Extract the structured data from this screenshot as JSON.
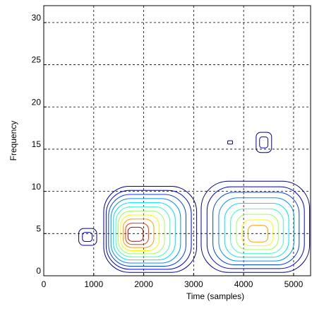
{
  "chart_data": {
    "type": "contour",
    "xlabel": "Time (samples)",
    "ylabel": "Frequency",
    "xlim": [
      0,
      5340
    ],
    "ylim": [
      0,
      32
    ],
    "xticks": [
      0,
      1000,
      2000,
      3000,
      4000,
      5000
    ],
    "yticks": [
      0,
      5,
      10,
      15,
      20,
      25,
      30
    ],
    "grid": true,
    "colors": [
      "#00008f",
      "#0000df",
      "#0040ff",
      "#0090ff",
      "#00e0ff",
      "#40ffbf",
      "#a0ff60",
      "#f0ff00",
      "#ffa000",
      "#ff3000",
      "#c00000"
    ],
    "regions": [
      {
        "x": [
          700,
          1060
        ],
        "y": [
          3.6,
          5.6
        ],
        "peak": [
          860,
          4.6
        ],
        "levels": 2
      },
      {
        "x": [
          1200,
          3060
        ],
        "y": [
          0.4,
          10.6
        ],
        "peak": [
          1780,
          4.8
        ],
        "levels": 11
      },
      {
        "x": [
          3150,
          5320
        ],
        "y": [
          0.4,
          11.2
        ],
        "peak": [
          4300,
          4.8
        ],
        "levels": 9
      },
      {
        "x": [
          4250,
          4560
        ],
        "y": [
          14.6,
          17.0
        ],
        "peak": [
          4400,
          15.8
        ],
        "levels": 2
      },
      {
        "x": [
          3680,
          3780
        ],
        "y": [
          15.6,
          16.0
        ],
        "peak": [
          3730,
          15.8
        ],
        "levels": 1
      }
    ]
  }
}
